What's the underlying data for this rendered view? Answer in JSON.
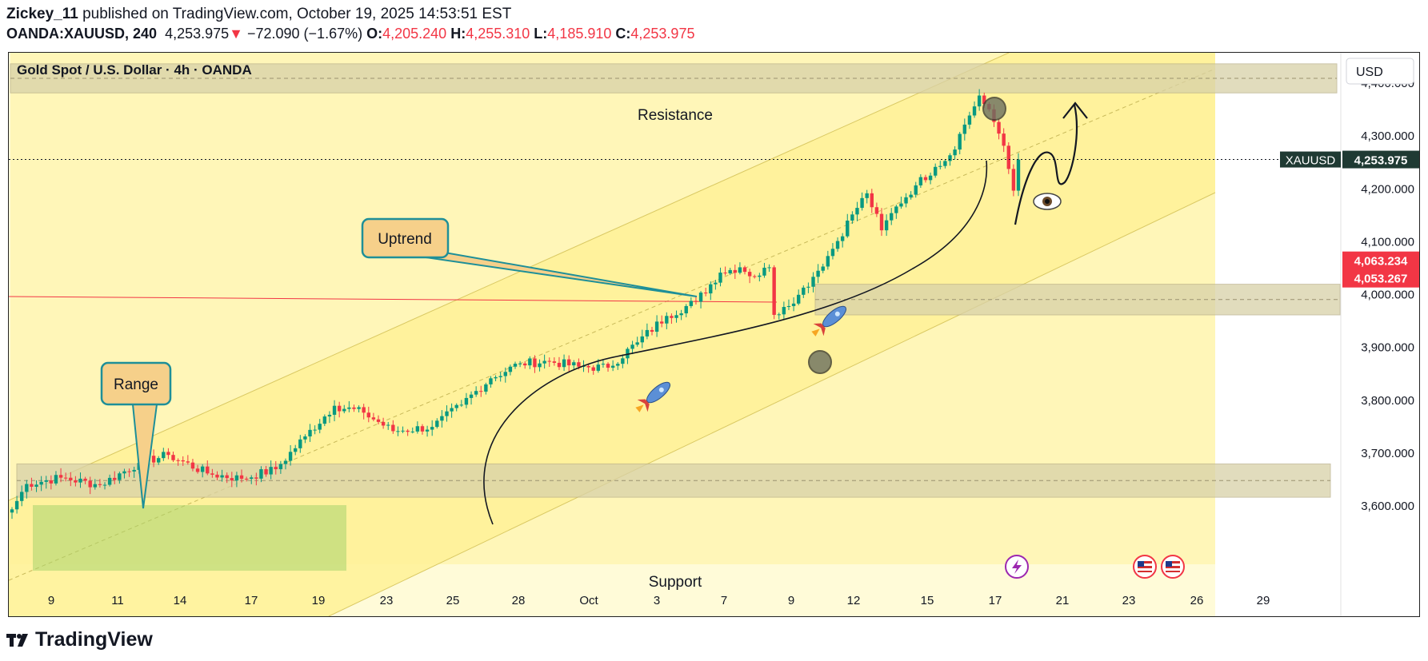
{
  "header": {
    "author": "Zickey_11",
    "published_text": "published on TradingView.com, October 19, 2025 14:53:51 EST",
    "symbol_line": "OANDA:XAUUSD, 240",
    "last": "4,253.975",
    "change_arrow": "▼",
    "change": "−72.090 (−1.67%)",
    "o_label": "O:",
    "o_val": "4,205.240",
    "h_label": "H:",
    "h_val": "4,255.310",
    "l_label": "L:",
    "l_val": "4,185.910",
    "c_label": "C:",
    "c_val": "4,253.975"
  },
  "footer": {
    "brand": "TradingView",
    "logo_icon": "tradingview-logo-icon"
  },
  "chart_data": {
    "type": "candlestick",
    "title": "Gold Spot / U.S. Dollar · 4h · OANDA",
    "currency_button": "USD",
    "ylim": [
      3585,
      4440
    ],
    "y_ticks": [
      "3,600.000",
      "3,700.000",
      "3,800.000",
      "3,900.000",
      "4,000.000",
      "4,100.000",
      "4,200.000",
      "4,300.000",
      "4,400.000"
    ],
    "y_tick_values": [
      3600,
      3700,
      3800,
      3900,
      4000,
      4100,
      4200,
      4300,
      4400
    ],
    "x_ticks": [
      "9",
      "11",
      "14",
      "17",
      "19",
      "23",
      "25",
      "28",
      "Oct",
      "3",
      "7",
      "9",
      "12",
      "15",
      "17",
      "21",
      "23",
      "26",
      "29"
    ],
    "last_price": {
      "label": "XAUUSD",
      "value": "4,253.975",
      "y": 4253.975
    },
    "alert_prices": [
      {
        "value": "4,063.234",
        "y": 4063.234
      },
      {
        "value": "4,053.267",
        "y": 4053.267
      }
    ],
    "zones": [
      {
        "name": "Resistance",
        "label": "Resistance",
        "from": 4380,
        "to": 4435
      },
      {
        "name": "Support",
        "label": "Support",
        "from": 3615,
        "to": 3678
      },
      {
        "name": "Mid zone",
        "label": "",
        "from": 3960,
        "to": 4018
      }
    ],
    "annotations": [
      {
        "name": "range-callout",
        "label": "Range"
      },
      {
        "name": "uptrend-callout",
        "label": "Uptrend"
      }
    ],
    "anchors": [
      {
        "x": 0,
        "close": 3592
      },
      {
        "x": 3,
        "close": 3640
      },
      {
        "x": 10,
        "close": 3652
      },
      {
        "x": 18,
        "close": 3638
      },
      {
        "x": 26,
        "close": 3680
      },
      {
        "x": 32,
        "close": 3695
      },
      {
        "x": 40,
        "close": 3660
      },
      {
        "x": 47,
        "close": 3650
      },
      {
        "x": 54,
        "close": 3668
      },
      {
        "x": 60,
        "close": 3730
      },
      {
        "x": 66,
        "close": 3788
      },
      {
        "x": 72,
        "close": 3775
      },
      {
        "x": 78,
        "close": 3740
      },
      {
        "x": 86,
        "close": 3748
      },
      {
        "x": 92,
        "close": 3790
      },
      {
        "x": 98,
        "close": 3840
      },
      {
        "x": 104,
        "close": 3868
      },
      {
        "x": 110,
        "close": 3872
      },
      {
        "x": 116,
        "close": 3862
      },
      {
        "x": 122,
        "close": 3860
      },
      {
        "x": 128,
        "close": 3908
      },
      {
        "x": 134,
        "close": 3958
      },
      {
        "x": 140,
        "close": 3985
      },
      {
        "x": 145,
        "close": 4040
      },
      {
        "x": 149,
        "close": 4050
      },
      {
        "x": 152,
        "close": 4032
      },
      {
        "x": 155,
        "close": 4050
      },
      {
        "x": 156,
        "close": 3960
      },
      {
        "x": 158,
        "close": 3975
      },
      {
        "x": 161,
        "close": 3998
      },
      {
        "x": 164,
        "close": 4032
      },
      {
        "x": 168,
        "close": 4085
      },
      {
        "x": 172,
        "close": 4150
      },
      {
        "x": 175,
        "close": 4190
      },
      {
        "x": 178,
        "close": 4120
      },
      {
        "x": 181,
        "close": 4165
      },
      {
        "x": 185,
        "close": 4205
      },
      {
        "x": 189,
        "close": 4240
      },
      {
        "x": 192,
        "close": 4262
      },
      {
        "x": 195,
        "close": 4320
      },
      {
        "x": 198,
        "close": 4375
      },
      {
        "x": 201,
        "close": 4325
      },
      {
        "x": 203,
        "close": 4280
      },
      {
        "x": 205,
        "close": 4195
      },
      {
        "x": 206,
        "close": 4253.975
      }
    ]
  },
  "colors": {
    "up": "#089981",
    "down": "#f23645",
    "channel_fill": "#fff4a8",
    "bg_yellow": "#fff8c4",
    "zone": "#d8d1a8",
    "range_box": "#a8d36e",
    "teal": "#1e8f98"
  }
}
